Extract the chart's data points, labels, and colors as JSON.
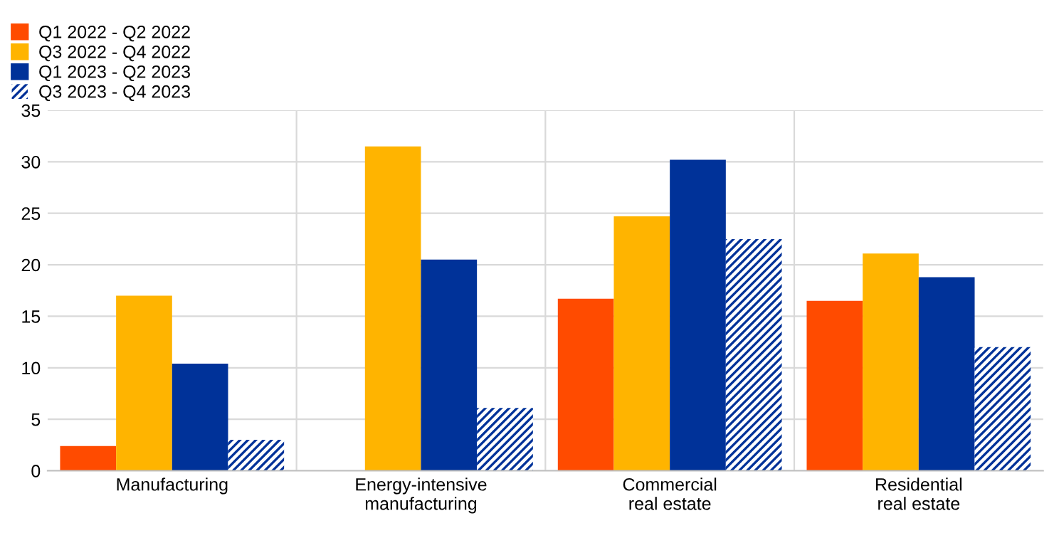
{
  "chart_data": {
    "type": "bar",
    "categories": [
      "Manufacturing",
      "Energy-intensive\nmanufacturing",
      "Commercial\nreal estate",
      "Residential\nreal estate"
    ],
    "series": [
      {
        "name": "Q1 2022 - Q2 2022",
        "color": "#ff4b00",
        "values": [
          2.4,
          null,
          16.7,
          16.5
        ]
      },
      {
        "name": "Q3 2022 - Q4 2022",
        "color": "#ffb400",
        "values": [
          17,
          31.5,
          24.7,
          21.1
        ]
      },
      {
        "name": "Q1 2023 - Q2 2023",
        "color": "#003299",
        "values": [
          10.4,
          20.5,
          30.2,
          18.8
        ]
      },
      {
        "name": "Q3 2023 - Q4 2023",
        "color": "#003299",
        "values": [
          3,
          6.1,
          22.5,
          12
        ]
      }
    ],
    "ylim": [
      0,
      35
    ],
    "yticks": [
      0,
      5,
      10,
      15,
      20,
      25,
      30,
      35
    ],
    "grid": true,
    "legend": "top left"
  }
}
